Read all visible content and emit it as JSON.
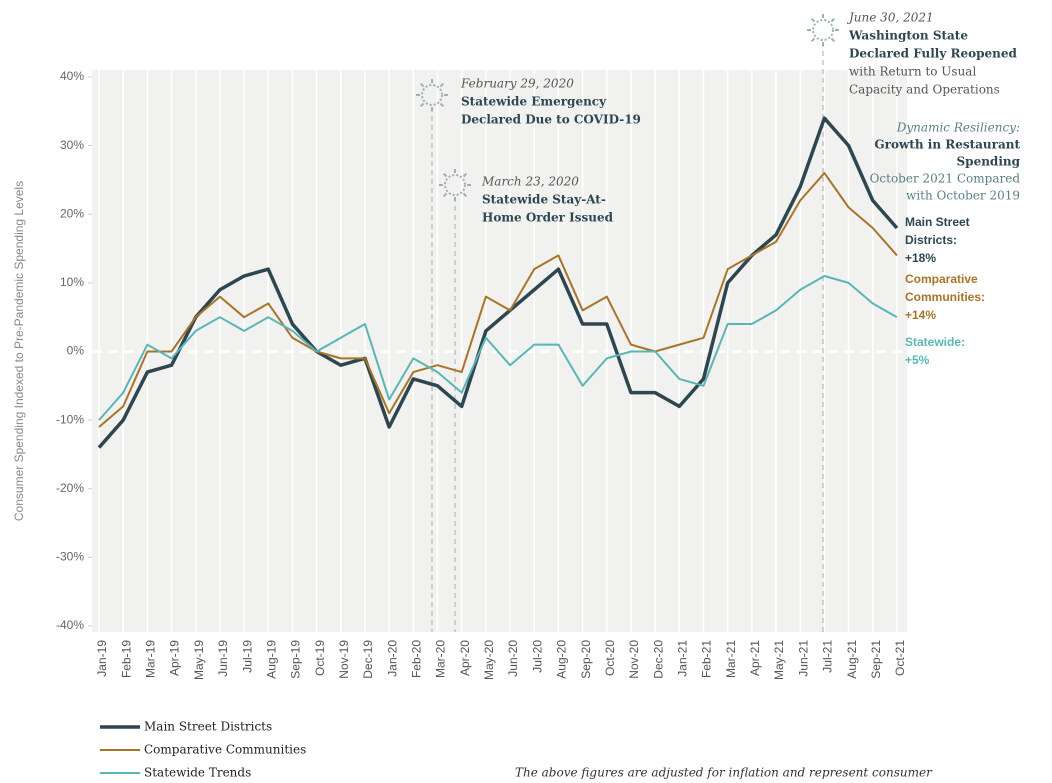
{
  "chart_data": {
    "type": "line",
    "y_label": "Consumer Spending Indexed to Pre-Pandemic Spending Levels",
    "categories": [
      "Jan-19",
      "Feb-19",
      "Mar-19",
      "Apr-19",
      "May-19",
      "Jun-19",
      "Jul-19",
      "Aug-19",
      "Sep-19",
      "Oct-19",
      "Nov-19",
      "Dec-19",
      "Jan-20",
      "Feb-20",
      "Mar-20",
      "Apr-20",
      "May-20",
      "Jun-20",
      "Jul-20",
      "Aug-20",
      "Sep-20",
      "Oct-20",
      "Nov-20",
      "Dec-20",
      "Jan-21",
      "Feb-21",
      "Mar-21",
      "Apr-21",
      "May-21",
      "Jun-21",
      "Jul-21",
      "Aug-21",
      "Sep-21",
      "Oct-21"
    ],
    "series": [
      {
        "name": "Main Street Districts",
        "color": "#2d4650",
        "end_label": [
          "Main Street",
          "Districts:",
          "+18%"
        ],
        "values": [
          -14,
          -10,
          -3,
          -2,
          5,
          9,
          11,
          12,
          4,
          0,
          -2,
          -1,
          -11,
          -4,
          -5,
          -8,
          3,
          6,
          9,
          12,
          4,
          4,
          -6,
          -6,
          -8,
          -4,
          10,
          14,
          17,
          24,
          34,
          30,
          22,
          18
        ]
      },
      {
        "name": "Comparative Communities",
        "color": "#a8742a",
        "end_label": [
          "Comparative",
          "Communities:",
          "+14%"
        ],
        "values": [
          -11,
          -8,
          0,
          0,
          5,
          8,
          5,
          7,
          2,
          0,
          -1,
          -1,
          -9,
          -3,
          -2,
          -3,
          8,
          6,
          12,
          14,
          6,
          8,
          1,
          0,
          1,
          2,
          12,
          14,
          16,
          22,
          26,
          21,
          18,
          14
        ]
      },
      {
        "name": "Statewide Trends",
        "color": "#5bb5b5",
        "end_label": [
          "Statewide:",
          "+5%"
        ],
        "values": [
          -10,
          -6,
          1,
          -1,
          3,
          5,
          3,
          5,
          3,
          0,
          2,
          4,
          -7,
          -1,
          -3,
          -6,
          2,
          -2,
          1,
          1,
          -5,
          -1,
          0,
          0,
          -4,
          -5,
          4,
          4,
          6,
          9,
          11,
          10,
          7,
          5
        ]
      }
    ],
    "ylim": [
      -40,
      40
    ],
    "yticks": [
      {
        "value": -40,
        "label": "-40%"
      },
      {
        "value": -30,
        "label": "-30%"
      },
      {
        "value": -20,
        "label": "-20%"
      },
      {
        "value": -10,
        "label": "-10%"
      },
      {
        "value": 0,
        "label": "0%"
      },
      {
        "value": 10,
        "label": "10%"
      },
      {
        "value": 20,
        "label": "20%"
      },
      {
        "value": 30,
        "label": "30%"
      },
      {
        "value": 40,
        "label": "40%"
      }
    ],
    "annotations": [
      {
        "date": "February 29, 2020",
        "title": [
          "Statewide Emergency",
          "Declared Due to COVID-19"
        ],
        "text": []
      },
      {
        "date": "March 23, 2020",
        "title": [
          "Statewide Stay-At-",
          "Home Order Issued"
        ],
        "text": []
      },
      {
        "date": "June 30, 2021",
        "title": [
          "Washington State",
          "Declared Fully Reopened"
        ],
        "text": [
          "with Return to Usual",
          "Capacity and Operations"
        ]
      }
    ],
    "note": {
      "heading": "Dynamic Resiliency:",
      "title": [
        "Growth in Restaurant",
        "Spending"
      ],
      "text": [
        "October 2021 Compared",
        "with October 2019"
      ]
    },
    "footnote": "The above figures are adjusted for inflation and represent consumer"
  }
}
